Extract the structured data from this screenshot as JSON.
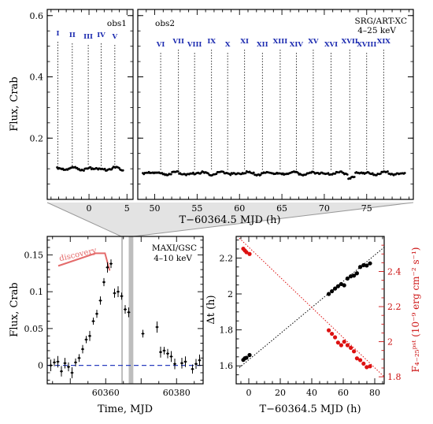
{
  "chart_data": [
    {
      "panel": "top",
      "type": "scatter",
      "ylabel": "Flux, Crab",
      "xlabel": "T−60364.5 MJD (h)",
      "ylim": [
        0,
        0.62
      ],
      "yticks": [
        0.2,
        0.4,
        0.6
      ],
      "subpanels": [
        {
          "name": "obs1",
          "xlim": [
            -5.5,
            5.8
          ],
          "xticks": [
            0,
            5
          ],
          "flux_level": 0.1,
          "x_start": -4.2,
          "x_end": 4.6,
          "bursts": [
            {
              "label": "I",
              "x": -4.1
            },
            {
              "label": "II",
              "x": -2.2
            },
            {
              "label": "III",
              "x": -0.1
            },
            {
              "label": "IV",
              "x": 1.6
            },
            {
              "label": "V",
              "x": 3.4
            }
          ]
        },
        {
          "name": "obs2",
          "instrument": [
            "SRG/ART-XC",
            "4–25 keV"
          ],
          "xlim": [
            48.0,
            80.5
          ],
          "xticks": [
            50,
            55,
            60,
            65,
            70,
            75
          ],
          "flux_level": 0.085,
          "x_start": 48.6,
          "x_end": 79.5,
          "bursts": [
            {
              "label": "VI",
              "x": 50.7
            },
            {
              "label": "VII",
              "x": 52.8
            },
            {
              "label": "VIII",
              "x": 54.7
            },
            {
              "label": "IX",
              "x": 56.7
            },
            {
              "label": "X",
              "x": 58.6
            },
            {
              "label": "XI",
              "x": 60.6
            },
            {
              "label": "XII",
              "x": 62.7
            },
            {
              "label": "XIII",
              "x": 64.8
            },
            {
              "label": "XIV",
              "x": 66.7
            },
            {
              "label": "XV",
              "x": 68.7
            },
            {
              "label": "XVI",
              "x": 70.8
            },
            {
              "label": "XVII",
              "x": 73.0
            },
            {
              "label": "XVIII",
              "x": 75.0
            },
            {
              "label": "XIX",
              "x": 77.0
            }
          ]
        }
      ]
    },
    {
      "panel": "bottom-left",
      "type": "scatter",
      "instrument": [
        "MAXI/GSC",
        "4–10 keV"
      ],
      "xlabel": "Time, MJD",
      "ylabel": "Flux, Crab",
      "xlim": [
        60343.5,
        60387.5
      ],
      "ylim": [
        -0.025,
        0.175
      ],
      "xticks": [
        60360,
        60380
      ],
      "yticks": [
        0,
        0.05,
        0.1,
        0.15
      ],
      "annotation": "discovery",
      "shaded_bands": [
        [
          60364.4,
          60364.7
        ],
        [
          60366.5,
          60367.8
        ]
      ],
      "points": [
        [
          60344.5,
          0.0
        ],
        [
          60345.5,
          0.004
        ],
        [
          60346.5,
          0.005
        ],
        [
          60347.5,
          -0.008
        ],
        [
          60348.5,
          0.003
        ],
        [
          60349.5,
          -0.002
        ],
        [
          60350.5,
          -0.01
        ],
        [
          60351.5,
          0.004
        ],
        [
          60352.5,
          0.01
        ],
        [
          60353.5,
          0.022
        ],
        [
          60354.5,
          0.035
        ],
        [
          60355.5,
          0.04
        ],
        [
          60356.5,
          0.06
        ],
        [
          60357.5,
          0.07
        ],
        [
          60358.5,
          0.088
        ],
        [
          60359.5,
          0.113
        ],
        [
          60360.5,
          0.133
        ],
        [
          60361.5,
          0.138
        ],
        [
          60362.5,
          0.098
        ],
        [
          60363.5,
          0.1
        ],
        [
          60364.5,
          0.094
        ],
        [
          60365.5,
          0.076
        ],
        [
          60366.5,
          0.072
        ],
        [
          60370.5,
          0.043
        ],
        [
          60374.5,
          0.052
        ],
        [
          60375.5,
          0.018
        ],
        [
          60376.5,
          0.02
        ],
        [
          60377.5,
          0.016
        ],
        [
          60378.5,
          0.012
        ],
        [
          60379.5,
          0.002
        ],
        [
          60381.5,
          0.003
        ],
        [
          60382.5,
          0.005
        ],
        [
          60384.5,
          -0.005
        ],
        [
          60385.5,
          0.002
        ],
        [
          60386.5,
          0.007
        ]
      ]
    },
    {
      "panel": "bottom-right",
      "type": "scatter",
      "xlabel": "T−60364.5 MJD (h)",
      "ylabel_left": "Δt (h)",
      "ylabel_right": "F₄₋₂₅ᵖˢᵗ (10⁻⁹ erg cm⁻² s⁻¹)",
      "xlim": [
        -8,
        86
      ],
      "xticks": [
        0,
        20,
        40,
        60,
        80
      ],
      "ylim_left": [
        1.5,
        2.32
      ],
      "yticks_left": [
        1.6,
        1.8,
        2,
        2.2
      ],
      "ylim_right": [
        1.76,
        2.6
      ],
      "yticks_right": [
        1.8,
        2,
        2.2,
        2.4
      ],
      "series": [
        {
          "color": "#000000",
          "axis": "left",
          "points": [
            [
              -3.5,
              1.633
            ],
            [
              -2.5,
              1.642
            ],
            [
              -1.5,
              1.645
            ],
            [
              0.5,
              1.66
            ],
            [
              50.8,
              2.0
            ],
            [
              52.8,
              2.015
            ],
            [
              54.8,
              2.03
            ],
            [
              56.7,
              2.043
            ],
            [
              58.7,
              2.055
            ],
            [
              60.6,
              2.048
            ],
            [
              62.7,
              2.086
            ],
            [
              64.8,
              2.098
            ],
            [
              66.8,
              2.102
            ],
            [
              68.7,
              2.115
            ],
            [
              70.8,
              2.15
            ],
            [
              72.9,
              2.16
            ],
            [
              74.9,
              2.158
            ],
            [
              77.0,
              2.17
            ]
          ],
          "fit": [
            [
              -6,
              1.59
            ],
            [
              86,
              2.26
            ]
          ]
        },
        {
          "color": "#dd1111",
          "axis": "right",
          "points": [
            [
              -3.5,
              2.53
            ],
            [
              -2.5,
              2.52
            ],
            [
              -1.5,
              2.51
            ],
            [
              0.5,
              2.5
            ],
            [
              50.8,
              2.065
            ],
            [
              52.8,
              2.045
            ],
            [
              54.8,
              2.025
            ],
            [
              56.7,
              1.995
            ],
            [
              58.7,
              1.98
            ],
            [
              60.6,
              2.0
            ],
            [
              62.7,
              1.98
            ],
            [
              64.8,
              1.965
            ],
            [
              66.8,
              1.945
            ],
            [
              68.7,
              1.905
            ],
            [
              70.8,
              1.895
            ],
            [
              72.9,
              1.875
            ],
            [
              74.9,
              1.855
            ],
            [
              77.0,
              1.86
            ]
          ],
          "fit": [
            [
              -6,
              2.59
            ],
            [
              86,
              1.8
            ]
          ]
        }
      ]
    }
  ]
}
